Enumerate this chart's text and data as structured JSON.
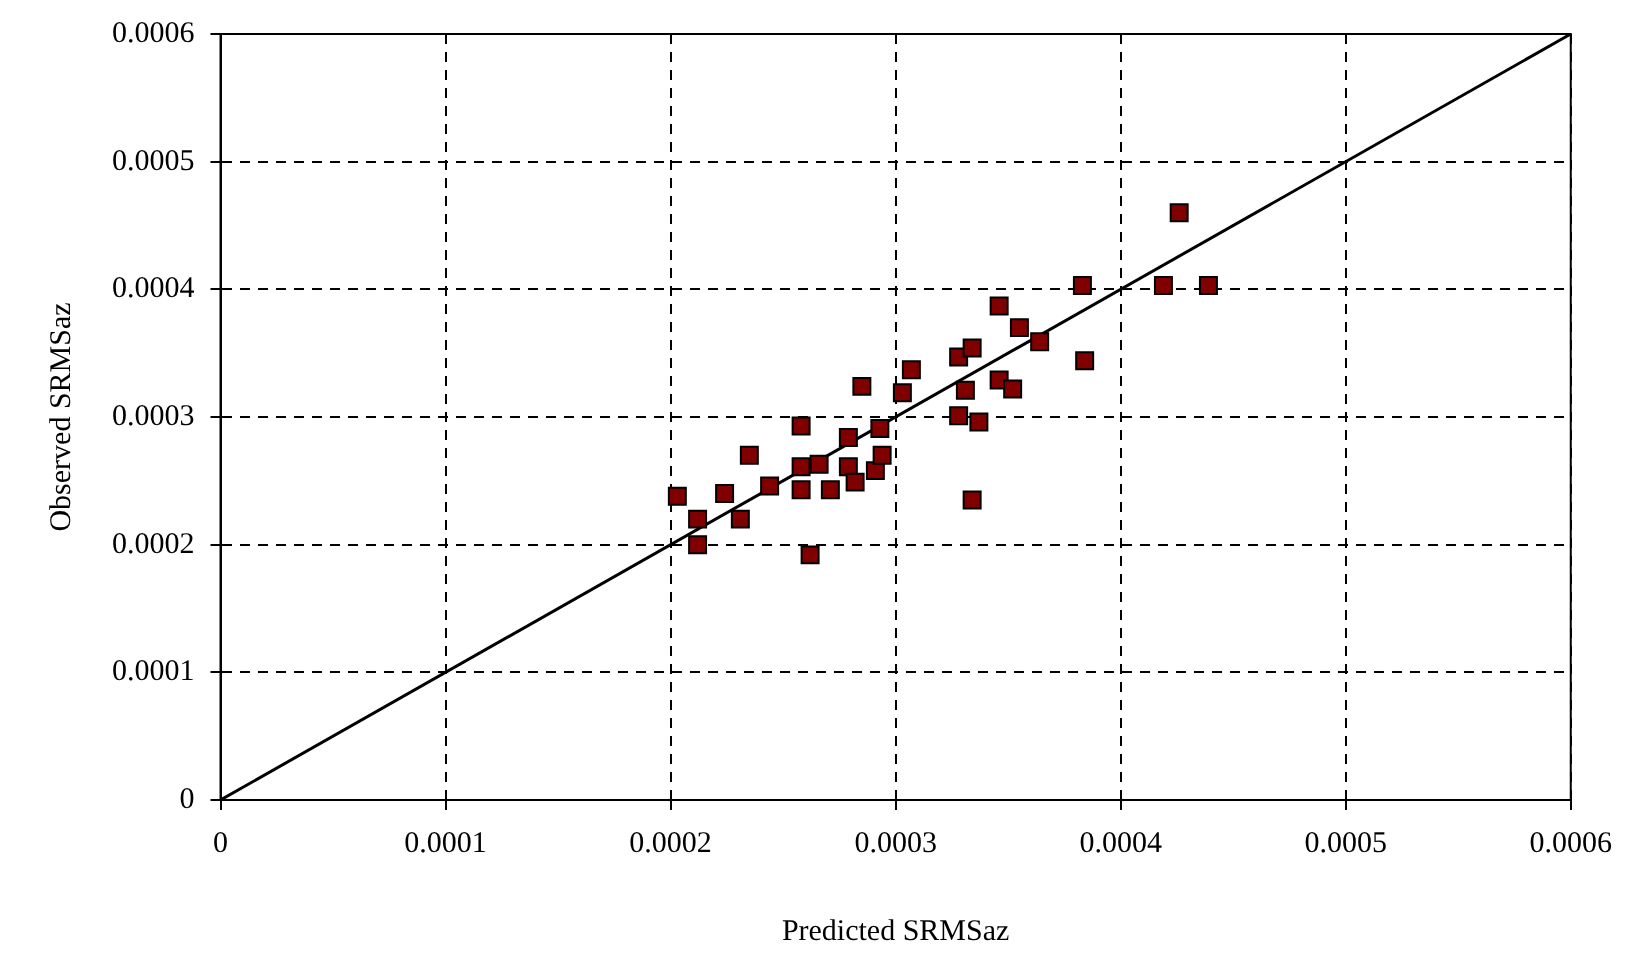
{
  "chart_data": {
    "type": "scatter",
    "xlabel": "Predicted SRMSaz",
    "ylabel": "Observed SRMSaz",
    "xlim": [
      0,
      0.0006
    ],
    "ylim": [
      0,
      0.0006
    ],
    "xticks": [
      0,
      0.0001,
      0.0002,
      0.0003,
      0.0004,
      0.0005,
      0.0006
    ],
    "yticks": [
      0,
      0.0001,
      0.0002,
      0.0003,
      0.0004,
      0.0005,
      0.0006
    ],
    "grid": true,
    "legend": false,
    "marker": "square",
    "series": [
      {
        "color": "#800000",
        "x": [
          0.000203,
          0.000212,
          0.000212,
          0.000224,
          0.000231,
          0.000235,
          0.000244,
          0.000258,
          0.000262,
          0.000258,
          0.000258,
          0.000266,
          0.000271,
          0.000279,
          0.000279,
          0.000282,
          0.000285,
          0.000291,
          0.000293,
          0.000294,
          0.000303,
          0.000307,
          0.000328,
          0.000334,
          0.000331,
          0.000328,
          0.000337,
          0.000334,
          0.000346,
          0.000355,
          0.000364,
          0.000346,
          0.000352,
          0.000383,
          0.000384,
          0.000426,
          0.000419,
          0.000439
        ],
        "values": [
          0.000238,
          0.00022,
          0.0002,
          0.00024,
          0.00022,
          0.00027,
          0.000246,
          0.000293,
          0.000192,
          0.000243,
          0.000261,
          0.000263,
          0.000243,
          0.000284,
          0.000261,
          0.000249,
          0.000324,
          0.000258,
          0.000291,
          0.00027,
          0.000319,
          0.000337,
          0.000347,
          0.000354,
          0.000321,
          0.000301,
          0.000296,
          0.000235,
          0.000387,
          0.00037,
          0.000359,
          0.000329,
          0.000322,
          0.000403,
          0.000344,
          0.00046,
          0.000403,
          0.000403
        ]
      },
      {
        "type": "line",
        "color": "#000000",
        "marker": "none",
        "line_style": "solid",
        "x": [
          0,
          0.0006
        ],
        "values": [
          0,
          0.0006
        ]
      }
    ]
  }
}
